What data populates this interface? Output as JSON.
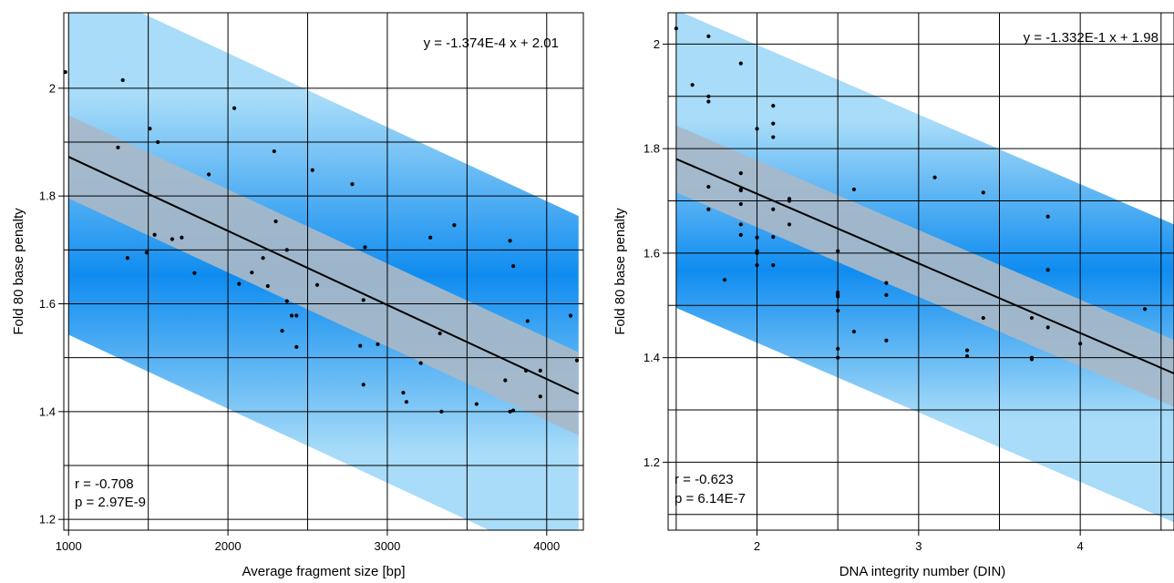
{
  "chart_data": [
    {
      "type": "scatter",
      "xlabel": "Average fragment size [bp]",
      "ylabel": "Fold 80 base penalty",
      "xlim": [
        970,
        4230
      ],
      "ylim": [
        1.18,
        2.14
      ],
      "xticks": [
        1000,
        2000,
        3000,
        4000
      ],
      "yticks": [
        1.2,
        1.4,
        1.6,
        1.8,
        2.0
      ],
      "xtick_labels": [
        "1000",
        "2000",
        "3000",
        "4000"
      ],
      "ytick_labels": [
        "1.2",
        "1.4",
        "1.6",
        "1.8",
        "2"
      ],
      "xgrid": [
        1000,
        1500,
        2000,
        2500,
        3000,
        3500,
        4000
      ],
      "ygrid": [
        1.2,
        1.3,
        1.4,
        1.5,
        1.6,
        1.7,
        1.8,
        1.9,
        2.0
      ],
      "fit": {
        "slope": -0.0001374,
        "intercept": 2.01,
        "x_range": [
          1000,
          4200
        ],
        "ci_half_width": 0.077,
        "pi_half_width": 0.33
      },
      "equation": "y = -1.374E-4 x + 2.01",
      "r_text": "r = -0.708",
      "p_text": "p = 2.97E-9",
      "points": [
        [
          980,
          2.03
        ],
        [
          1340,
          2.015
        ],
        [
          1310,
          1.89
        ],
        [
          1510,
          1.925
        ],
        [
          1560,
          1.9
        ],
        [
          1370,
          1.685
        ],
        [
          1490,
          1.695
        ],
        [
          1540,
          1.728
        ],
        [
          1650,
          1.72
        ],
        [
          1710,
          1.723
        ],
        [
          1790,
          1.657
        ],
        [
          1880,
          1.84
        ],
        [
          2040,
          1.963
        ],
        [
          2070,
          1.637
        ],
        [
          2150,
          1.658
        ],
        [
          2220,
          1.685
        ],
        [
          2250,
          1.633
        ],
        [
          2290,
          1.883
        ],
        [
          2300,
          1.753
        ],
        [
          2340,
          1.55
        ],
        [
          2370,
          1.605
        ],
        [
          2370,
          1.7
        ],
        [
          2400,
          1.578
        ],
        [
          2430,
          1.578
        ],
        [
          2430,
          1.52
        ],
        [
          2530,
          1.848
        ],
        [
          2560,
          1.635
        ],
        [
          2780,
          1.822
        ],
        [
          2830,
          1.522
        ],
        [
          2850,
          1.607
        ],
        [
          2850,
          1.45
        ],
        [
          2860,
          1.705
        ],
        [
          2940,
          1.525
        ],
        [
          3100,
          1.435
        ],
        [
          3120,
          1.418
        ],
        [
          3210,
          1.49
        ],
        [
          3270,
          1.723
        ],
        [
          3330,
          1.545
        ],
        [
          3340,
          1.4
        ],
        [
          3420,
          1.746
        ],
        [
          3560,
          1.414
        ],
        [
          3740,
          1.458
        ],
        [
          3770,
          1.717
        ],
        [
          3770,
          1.4
        ],
        [
          3790,
          1.67
        ],
        [
          3790,
          1.402
        ],
        [
          3870,
          1.476
        ],
        [
          3880,
          1.568
        ],
        [
          3960,
          1.476
        ],
        [
          3960,
          1.428
        ],
        [
          4150,
          1.578
        ],
        [
          4190,
          1.495
        ]
      ]
    },
    {
      "type": "scatter",
      "xlabel": "DNA integrity number (DIN)",
      "ylabel": "Fold 80 base penalty",
      "xlim": [
        1.45,
        4.58
      ],
      "ylim": [
        1.07,
        2.06
      ],
      "xticks": [
        2,
        3,
        4
      ],
      "yticks": [
        1.2,
        1.4,
        1.6,
        1.8,
        2.0
      ],
      "xtick_labels": [
        "2",
        "3",
        "4"
      ],
      "ytick_labels": [
        "1.2",
        "1.4",
        "1.6",
        "1.8",
        "2"
      ],
      "xgrid": [
        1.5,
        2.0,
        2.5,
        3.0,
        3.5,
        4.0,
        4.5
      ],
      "ygrid": [
        1.1,
        1.2,
        1.3,
        1.4,
        1.5,
        1.6,
        1.7,
        1.8,
        1.9,
        2.0
      ],
      "fit": {
        "slope": -0.1332,
        "intercept": 1.98,
        "x_range": [
          1.5,
          4.7
        ],
        "ci_half_width": 0.064,
        "pi_half_width": 0.285
      },
      "equation": "y = -1.332E-1 x + 1.98",
      "r_text": "r = -0.623",
      "p_text": "p = 6.14E-7",
      "points": [
        [
          1.5,
          2.03
        ],
        [
          1.7,
          2.015
        ],
        [
          1.6,
          1.922
        ],
        [
          1.7,
          1.9
        ],
        [
          1.7,
          1.89
        ],
        [
          1.9,
          1.963
        ],
        [
          1.7,
          1.727
        ],
        [
          1.7,
          1.684
        ],
        [
          1.8,
          1.549
        ],
        [
          1.9,
          1.753
        ],
        [
          1.9,
          1.722
        ],
        [
          1.9,
          1.72
        ],
        [
          1.9,
          1.694
        ],
        [
          1.9,
          1.655
        ],
        [
          1.9,
          1.635
        ],
        [
          2.0,
          1.838
        ],
        [
          2.0,
          1.63
        ],
        [
          2.0,
          1.604
        ],
        [
          2.0,
          1.6
        ],
        [
          2.0,
          1.577
        ],
        [
          2.1,
          1.882
        ],
        [
          2.1,
          1.848
        ],
        [
          2.1,
          1.822
        ],
        [
          2.1,
          1.684
        ],
        [
          2.1,
          1.631
        ],
        [
          2.1,
          1.577
        ],
        [
          2.2,
          1.704
        ],
        [
          2.2,
          1.7
        ],
        [
          2.2,
          1.655
        ],
        [
          2.5,
          1.604
        ],
        [
          2.5,
          1.525
        ],
        [
          2.5,
          1.52
        ],
        [
          2.5,
          1.517
        ],
        [
          2.5,
          1.49
        ],
        [
          2.5,
          1.417
        ],
        [
          2.5,
          1.4
        ],
        [
          2.6,
          1.722
        ],
        [
          2.6,
          1.45
        ],
        [
          2.8,
          1.543
        ],
        [
          2.8,
          1.52
        ],
        [
          2.8,
          1.433
        ],
        [
          3.1,
          1.745
        ],
        [
          3.3,
          1.414
        ],
        [
          3.3,
          1.403
        ],
        [
          3.4,
          1.716
        ],
        [
          3.4,
          1.476
        ],
        [
          3.7,
          1.476
        ],
        [
          3.7,
          1.4
        ],
        [
          3.7,
          1.397
        ],
        [
          3.8,
          1.67
        ],
        [
          3.8,
          1.568
        ],
        [
          3.8,
          1.458
        ],
        [
          4.0,
          1.427
        ],
        [
          4.4,
          1.493
        ]
      ]
    }
  ]
}
